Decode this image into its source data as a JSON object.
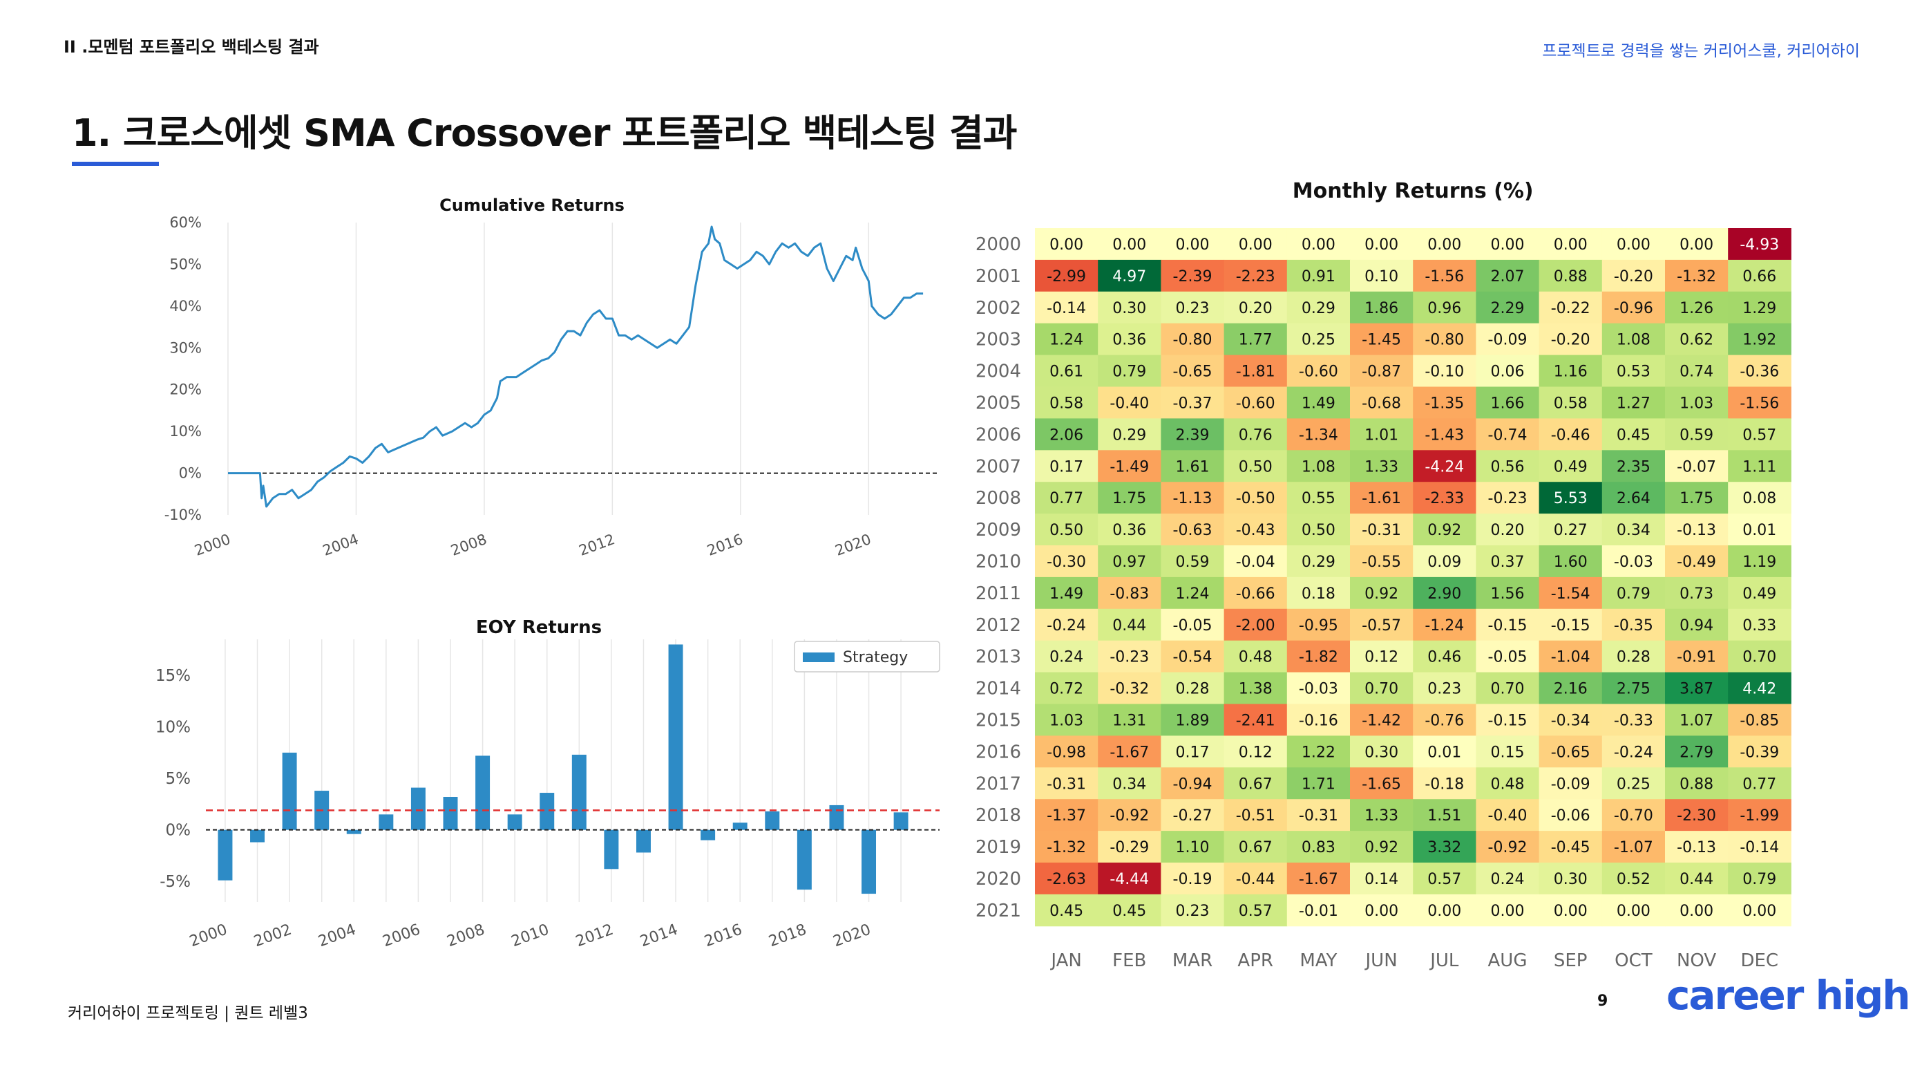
{
  "header": {
    "section_label": "II .모멘텀 포트폴리오 백테스팅 결과",
    "tagline": "프로젝트로 경력을 쌓는 커리어스쿨, 커리어하이"
  },
  "main_title": "1. 크로스에셋 SMA Crossover 포트폴리오 백테스팅 결과",
  "footer": {
    "text": "커리어하이 프로젝토링  |  퀀트 레벨3",
    "page_number": "9",
    "logo_text": "career high"
  },
  "colors": {
    "accent": "#2a5bd7",
    "series": "#2d8bc6",
    "mean_line": "#e03030",
    "text": "#111111"
  },
  "chart_data": [
    {
      "type": "line",
      "title": "Cumulative Returns",
      "xlim": [
        2000,
        2022
      ],
      "ylim": [
        -10,
        60
      ],
      "y_ticks": [
        -10,
        0,
        10,
        20,
        30,
        40,
        50,
        60
      ],
      "y_tick_labels": [
        "-10%",
        "0%",
        "10%",
        "20%",
        "30%",
        "40%",
        "50%",
        "60%"
      ],
      "x_ticks": [
        2000,
        2004,
        2008,
        2012,
        2016,
        2020
      ],
      "x_tick_labels": [
        "2000",
        "2004",
        "2008",
        "2012",
        "2016",
        "2020"
      ],
      "baseline": 0,
      "grid": "vertical",
      "series": [
        {
          "x": [
            2000.0,
            2001.0,
            2001.05,
            2001.1,
            2001.2,
            2001.4,
            2001.6,
            2001.8,
            2002.0,
            2002.2,
            2002.4,
            2002.6,
            2002.8,
            2003.0,
            2003.2,
            2003.4,
            2003.6,
            2003.8,
            2004.0,
            2004.2,
            2004.4,
            2004.6,
            2004.8,
            2005.0,
            2005.3,
            2005.6,
            2005.9,
            2006.1,
            2006.3,
            2006.5,
            2006.7,
            2007.0,
            2007.2,
            2007.4,
            2007.6,
            2007.8,
            2008.0,
            2008.2,
            2008.4,
            2008.5,
            2008.7,
            2009.0,
            2009.2,
            2009.4,
            2009.6,
            2009.8,
            2010.0,
            2010.2,
            2010.4,
            2010.6,
            2010.8,
            2011.0,
            2011.2,
            2011.4,
            2011.6,
            2011.8,
            2012.0,
            2012.2,
            2012.4,
            2012.6,
            2012.8,
            2013.0,
            2013.2,
            2013.4,
            2013.6,
            2013.8,
            2014.0,
            2014.2,
            2014.4,
            2014.6,
            2014.8,
            2015.0,
            2015.1,
            2015.2,
            2015.35,
            2015.5,
            2015.7,
            2015.9,
            2016.1,
            2016.3,
            2016.5,
            2016.7,
            2016.9,
            2017.1,
            2017.3,
            2017.5,
            2017.7,
            2017.9,
            2018.1,
            2018.3,
            2018.5,
            2018.7,
            2018.9,
            2019.1,
            2019.3,
            2019.5,
            2019.6,
            2019.8,
            2020.0,
            2020.1,
            2020.3,
            2020.5,
            2020.7,
            2020.9,
            2021.1,
            2021.3,
            2021.5,
            2021.7
          ],
          "y": [
            0,
            0,
            -6,
            -3,
            -8,
            -6,
            -5,
            -5,
            -4,
            -6,
            -5,
            -4,
            -2,
            -1,
            0.5,
            1.5,
            2.5,
            4,
            3.5,
            2.5,
            4,
            6,
            7,
            5,
            6,
            7,
            8,
            8.5,
            10,
            11,
            9,
            10,
            11,
            12,
            11,
            12,
            14,
            15,
            18,
            22,
            23,
            23,
            24,
            25,
            26,
            27,
            27.5,
            29,
            32,
            34,
            34,
            33,
            36,
            38,
            39,
            37,
            37,
            33,
            33,
            32,
            33,
            32,
            31,
            30,
            31,
            32,
            31,
            33,
            35,
            45,
            53,
            55,
            59,
            56,
            55,
            51,
            50,
            49,
            50,
            51,
            53,
            52,
            50,
            53,
            55,
            54,
            55,
            53,
            52,
            54,
            55,
            49,
            46,
            49,
            52,
            51,
            54,
            49,
            46,
            40,
            38,
            37,
            38,
            40,
            42,
            42,
            43,
            43
          ]
        }
      ]
    },
    {
      "type": "bar",
      "title": "EOY Returns",
      "legend": "Strategy",
      "legend_position": "top-right",
      "xlim": [
        1999.4,
        2022.2
      ],
      "ylim": [
        -7,
        18.5
      ],
      "y_ticks": [
        -5,
        0,
        5,
        10,
        15
      ],
      "y_tick_labels": [
        "-5%",
        "0%",
        "5%",
        "10%",
        "15%"
      ],
      "x_ticks": [
        2000,
        2002,
        2004,
        2006,
        2008,
        2010,
        2012,
        2014,
        2016,
        2018,
        2020
      ],
      "x_tick_labels": [
        "2000",
        "2002",
        "2004",
        "2006",
        "2008",
        "2010",
        "2012",
        "2014",
        "2016",
        "2018",
        "2020"
      ],
      "mean": 1.9,
      "baseline": 0,
      "grid": "vertical",
      "categories": [
        2000,
        2001,
        2002,
        2003,
        2004,
        2005,
        2006,
        2007,
        2008,
        2009,
        2010,
        2011,
        2012,
        2013,
        2014,
        2015,
        2016,
        2017,
        2018,
        2019,
        2020,
        2021
      ],
      "series": [
        {
          "name": "Strategy",
          "values": [
            -4.9,
            -1.2,
            7.5,
            3.8,
            -0.4,
            1.5,
            4.1,
            3.2,
            7.2,
            1.5,
            3.6,
            7.3,
            -3.8,
            -2.2,
            18.0,
            -1.0,
            0.7,
            1.8,
            -5.8,
            2.4,
            -6.2,
            1.7
          ]
        }
      ]
    },
    {
      "type": "heatmap",
      "title": "Monthly Returns (%)",
      "rows": [
        "2000",
        "2001",
        "2002",
        "2003",
        "2004",
        "2005",
        "2006",
        "2007",
        "2008",
        "2009",
        "2010",
        "2011",
        "2012",
        "2013",
        "2014",
        "2015",
        "2016",
        "2017",
        "2018",
        "2019",
        "2020",
        "2021"
      ],
      "columns": [
        "JAN",
        "FEB",
        "MAR",
        "APR",
        "MAY",
        "JUN",
        "JUL",
        "AUG",
        "SEP",
        "OCT",
        "NOV",
        "DEC"
      ],
      "values": [
        [
          0.0,
          0.0,
          0.0,
          0.0,
          0.0,
          0.0,
          0.0,
          0.0,
          0.0,
          0.0,
          0.0,
          -4.93
        ],
        [
          -2.99,
          4.97,
          -2.39,
          -2.23,
          0.91,
          0.1,
          -1.56,
          2.07,
          0.88,
          -0.2,
          -1.32,
          0.66
        ],
        [
          -0.14,
          0.3,
          0.23,
          0.2,
          0.29,
          1.86,
          0.96,
          2.29,
          -0.22,
          -0.96,
          1.26,
          1.29
        ],
        [
          1.24,
          0.36,
          -0.8,
          1.77,
          0.25,
          -1.45,
          -0.8,
          -0.09,
          -0.2,
          1.08,
          0.62,
          1.92
        ],
        [
          0.61,
          0.79,
          -0.65,
          -1.81,
          -0.6,
          -0.87,
          -0.1,
          0.06,
          1.16,
          0.53,
          0.74,
          -0.36
        ],
        [
          0.58,
          -0.4,
          -0.37,
          -0.6,
          1.49,
          -0.68,
          -1.35,
          1.66,
          0.58,
          1.27,
          1.03,
          -1.56
        ],
        [
          2.06,
          0.29,
          2.39,
          0.76,
          -1.34,
          1.01,
          -1.43,
          -0.74,
          -0.46,
          0.45,
          0.59,
          0.57
        ],
        [
          0.17,
          -1.49,
          1.61,
          0.5,
          1.08,
          1.33,
          -4.24,
          0.56,
          0.49,
          2.35,
          -0.07,
          1.11
        ],
        [
          0.77,
          1.75,
          -1.13,
          -0.5,
          0.55,
          -1.61,
          -2.33,
          -0.23,
          5.53,
          2.64,
          1.75,
          0.08
        ],
        [
          0.5,
          0.36,
          -0.63,
          -0.43,
          0.5,
          -0.31,
          0.92,
          0.2,
          0.27,
          0.34,
          -0.13,
          0.01
        ],
        [
          -0.3,
          0.97,
          0.59,
          -0.04,
          0.29,
          -0.55,
          0.09,
          0.37,
          1.6,
          -0.03,
          -0.49,
          1.19
        ],
        [
          1.49,
          -0.83,
          1.24,
          -0.66,
          0.18,
          0.92,
          2.9,
          1.56,
          -1.54,
          0.79,
          0.73,
          0.49
        ],
        [
          -0.24,
          0.44,
          -0.05,
          -2.0,
          -0.95,
          -0.57,
          -1.24,
          -0.15,
          -0.15,
          -0.35,
          0.94,
          0.33
        ],
        [
          0.24,
          -0.23,
          -0.54,
          0.48,
          -1.82,
          0.12,
          0.46,
          -0.05,
          -1.04,
          0.28,
          -0.91,
          0.7
        ],
        [
          0.72,
          -0.32,
          0.28,
          1.38,
          -0.03,
          0.7,
          0.23,
          0.7,
          2.16,
          2.75,
          3.87,
          4.42
        ],
        [
          1.03,
          1.31,
          1.89,
          -2.41,
          -0.16,
          -1.42,
          -0.76,
          -0.15,
          -0.34,
          -0.33,
          1.07,
          -0.85
        ],
        [
          -0.98,
          -1.67,
          0.17,
          0.12,
          1.22,
          0.3,
          0.01,
          0.15,
          -0.65,
          -0.24,
          2.79,
          -0.39
        ],
        [
          -0.31,
          0.34,
          -0.94,
          0.67,
          1.71,
          -1.65,
          -0.18,
          0.48,
          -0.09,
          0.25,
          0.88,
          0.77
        ],
        [
          -1.37,
          -0.92,
          -0.27,
          -0.51,
          -0.31,
          1.33,
          1.51,
          -0.4,
          -0.06,
          -0.7,
          -2.3,
          -1.99
        ],
        [
          -1.32,
          -0.29,
          1.1,
          0.67,
          0.83,
          0.92,
          3.32,
          -0.92,
          -0.45,
          -1.07,
          -0.13,
          -0.14
        ],
        [
          -2.63,
          -4.44,
          -0.19,
          -0.44,
          -1.67,
          0.14,
          0.57,
          0.24,
          0.3,
          0.52,
          0.44,
          0.79
        ],
        [
          0.45,
          0.45,
          0.23,
          0.57,
          -0.01,
          0.0,
          0.0,
          0.0,
          0.0,
          0.0,
          0.0,
          0.0
        ]
      ],
      "color_scale": "RdYlGn",
      "color_range": [
        -5,
        5
      ]
    }
  ]
}
